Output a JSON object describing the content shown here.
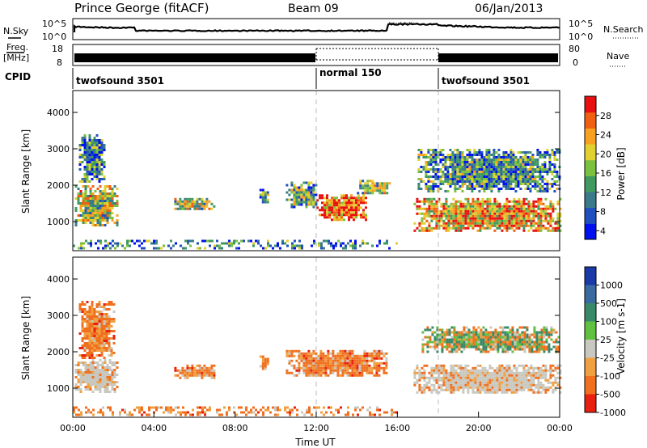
{
  "header": {
    "station": "Prince George (fitACF)",
    "beam": "Beam 09",
    "date": "06/Jan/2013"
  },
  "panels": {
    "noise": {
      "left_label": "N.Sky",
      "right_label": "N.Search",
      "left_ticks": [
        "10^5",
        "10^0"
      ],
      "right_ticks": [
        "10^5",
        "10^0"
      ]
    },
    "freq": {
      "left_label_line1": "Freq.",
      "left_label_line2": "[MHz]",
      "right_label": "Nave",
      "left_ticks": [
        "18",
        "8"
      ],
      "right_ticks": [
        "80",
        "0"
      ]
    },
    "cpid": {
      "label": "CPID",
      "segments": [
        {
          "name": "twofsound 3501",
          "start_hour": 0,
          "end_hour": 12
        },
        {
          "name": "normal 150",
          "start_hour": 12,
          "end_hour": 18
        },
        {
          "name": "twofsound 3501",
          "start_hour": 18,
          "end_hour": 24
        }
      ]
    }
  },
  "chart_data": [
    {
      "type": "heatmap",
      "name": "power",
      "ylabel": "Slant Range [km]",
      "xlim": [
        0,
        24
      ],
      "ylim": [
        200,
        4600
      ],
      "yticks": [
        "1000",
        "2000",
        "3000",
        "4000"
      ],
      "colorbar": {
        "label": "Power [dB]",
        "ticks": [
          "28",
          "24",
          "20",
          "16",
          "12",
          "8",
          "4"
        ],
        "colors": [
          "#0010ee",
          "#2050c0",
          "#3a7a8a",
          "#409a60",
          "#7cc040",
          "#e0d030",
          "#f8a020",
          "#f06010",
          "#e81010"
        ]
      },
      "regions": [
        {
          "x0": 0.1,
          "x1": 2.2,
          "y0": 900,
          "y1": 2000,
          "level": 0.55
        },
        {
          "x0": 0.3,
          "x1": 1.6,
          "y0": 2100,
          "y1": 3400,
          "level": 0.3
        },
        {
          "x0": 5.0,
          "x1": 7.0,
          "y0": 1350,
          "y1": 1650,
          "level": 0.55
        },
        {
          "x0": 9.2,
          "x1": 9.6,
          "y0": 1550,
          "y1": 1900,
          "level": 0.35
        },
        {
          "x0": 10.5,
          "x1": 12.0,
          "y0": 1400,
          "y1": 2100,
          "level": 0.4
        },
        {
          "x0": 12.0,
          "x1": 14.4,
          "y0": 1050,
          "y1": 1750,
          "level": 0.85
        },
        {
          "x0": 14.0,
          "x1": 15.6,
          "y0": 1750,
          "y1": 2150,
          "level": 0.45
        },
        {
          "x0": 16.8,
          "x1": 24.0,
          "y0": 750,
          "y1": 1650,
          "level": 0.7
        },
        {
          "x0": 17.0,
          "x1": 24.0,
          "y0": 1850,
          "y1": 3000,
          "level": 0.35
        },
        {
          "x0": 0.0,
          "x1": 16.0,
          "y0": 250,
          "y1": 500,
          "level": 0.3
        }
      ]
    },
    {
      "type": "heatmap",
      "name": "velocity",
      "ylabel": "Slant Range [km]",
      "xlabel": "Time UT",
      "xlim": [
        0,
        24
      ],
      "ylim": [
        200,
        4600
      ],
      "yticks": [
        "1000",
        "2000",
        "3000",
        "4000"
      ],
      "xticks": [
        "00:00",
        "04:00",
        "08:00",
        "12:00",
        "16:00",
        "20:00",
        "00:00"
      ],
      "colorbar": {
        "label": "Velocity [m s-1]",
        "ticks": [
          "1000",
          "500",
          "100",
          "25",
          "-25",
          "-100",
          "-500",
          "-1000"
        ],
        "colors": [
          "#1a3aa8",
          "#3a6aa0",
          "#3a8a6a",
          "#60c040",
          "#c8c8c0",
          "#f0a040",
          "#f07020",
          "#e82010"
        ]
      },
      "regions": [
        {
          "x0": 0.1,
          "x1": 2.2,
          "y0": 900,
          "y1": 1800,
          "kind": "gray"
        },
        {
          "x0": 0.3,
          "x1": 2.0,
          "y0": 1800,
          "y1": 3400,
          "kind": "orange"
        },
        {
          "x0": 5.0,
          "x1": 7.0,
          "y0": 1300,
          "y1": 1650,
          "kind": "orange"
        },
        {
          "x0": 9.2,
          "x1": 9.6,
          "y0": 1550,
          "y1": 1900,
          "kind": "orange"
        },
        {
          "x0": 10.5,
          "x1": 15.5,
          "y0": 1350,
          "y1": 2050,
          "kind": "orange"
        },
        {
          "x0": 16.8,
          "x1": 24.0,
          "y0": 850,
          "y1": 1650,
          "kind": "gray"
        },
        {
          "x0": 17.2,
          "x1": 24.0,
          "y0": 2000,
          "y1": 2700,
          "kind": "mixed"
        },
        {
          "x0": 0.0,
          "x1": 16.0,
          "y0": 250,
          "y1": 500,
          "kind": "orange"
        }
      ]
    }
  ]
}
